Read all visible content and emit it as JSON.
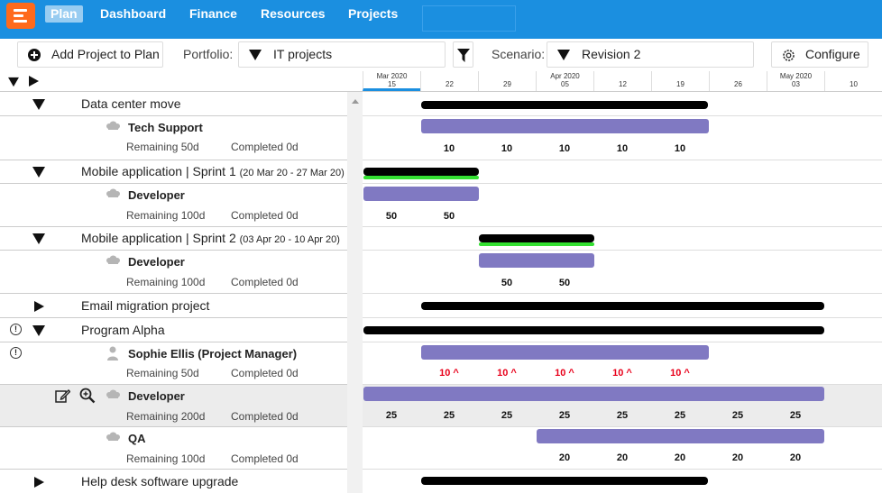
{
  "nav": {
    "items": [
      {
        "label": "Plan",
        "active": true
      },
      {
        "label": "Dashboard"
      },
      {
        "label": "Finance"
      },
      {
        "label": "Resources"
      },
      {
        "label": "Projects"
      }
    ]
  },
  "toolbar": {
    "add_label": "Add Project to Plan",
    "portfolio_label": "Portfolio:",
    "portfolio_value": "IT projects",
    "scenario_label": "Scenario:",
    "scenario_value": "Revision 2",
    "configure_label": "Configure"
  },
  "timeline": {
    "weeks": [
      {
        "month": "Mar 2020",
        "day": "15",
        "current": true
      },
      {
        "month": "",
        "day": "22"
      },
      {
        "month": "",
        "day": "29"
      },
      {
        "month": "Apr 2020",
        "day": "05"
      },
      {
        "month": "",
        "day": "12"
      },
      {
        "month": "",
        "day": "19"
      },
      {
        "month": "",
        "day": "26"
      },
      {
        "month": "May 2020",
        "day": "03"
      },
      {
        "month": "",
        "day": "10"
      }
    ]
  },
  "rows": {
    "r0": {
      "name": "Data center move"
    },
    "r1": {
      "res": "Tech Support",
      "remaining": "Remaining  50d",
      "completed": "Completed  0d"
    },
    "r2": {
      "name": "Mobile application",
      "sep": " | Sprint 1 ",
      "dates": "(20 Mar 20 - 27 Mar 20)"
    },
    "r3": {
      "res": "Developer",
      "remaining": "Remaining  100d",
      "completed": "Completed  0d"
    },
    "r4": {
      "name": "Mobile application",
      "sep": " | Sprint 2 ",
      "dates": "(03 Apr 20 - 10 Apr 20)"
    },
    "r5": {
      "res": "Developer",
      "remaining": "Remaining  100d",
      "completed": "Completed  0d"
    },
    "r6": {
      "name": "Email migration project"
    },
    "r7": {
      "name": "Program Alpha"
    },
    "r8": {
      "res": "Sophie Ellis (Project Manager)",
      "remaining": "Remaining  50d",
      "completed": "Completed  0d"
    },
    "r9": {
      "res": "Developer",
      "remaining": "Remaining  200d",
      "completed": "Completed  0d"
    },
    "r10": {
      "res": "QA",
      "remaining": "Remaining  100d",
      "completed": "Completed  0d"
    },
    "r11": {
      "name": "Help desk software upgrade"
    }
  },
  "values": {
    "tech_support": [
      "10",
      "10",
      "10",
      "10",
      "10"
    ],
    "sprint1_dev": [
      "50",
      "50"
    ],
    "sprint2_dev": [
      "50",
      "50"
    ],
    "sophie": [
      "10 ^",
      "10 ^",
      "10 ^",
      "10 ^",
      "10 ^"
    ],
    "developer": [
      "25",
      "25",
      "25",
      "25",
      "25",
      "25",
      "25",
      "25"
    ],
    "qa": [
      "20",
      "20",
      "20",
      "20",
      "20"
    ]
  },
  "icons": {
    "warning": "!",
    "colors": {
      "nav": "#1b8fe0",
      "logo": "#ff6a1c",
      "bar_black": "#000000",
      "bar_purple": "#8079c2",
      "bar_green": "#33e031",
      "overalloc": "#e8001a"
    }
  }
}
